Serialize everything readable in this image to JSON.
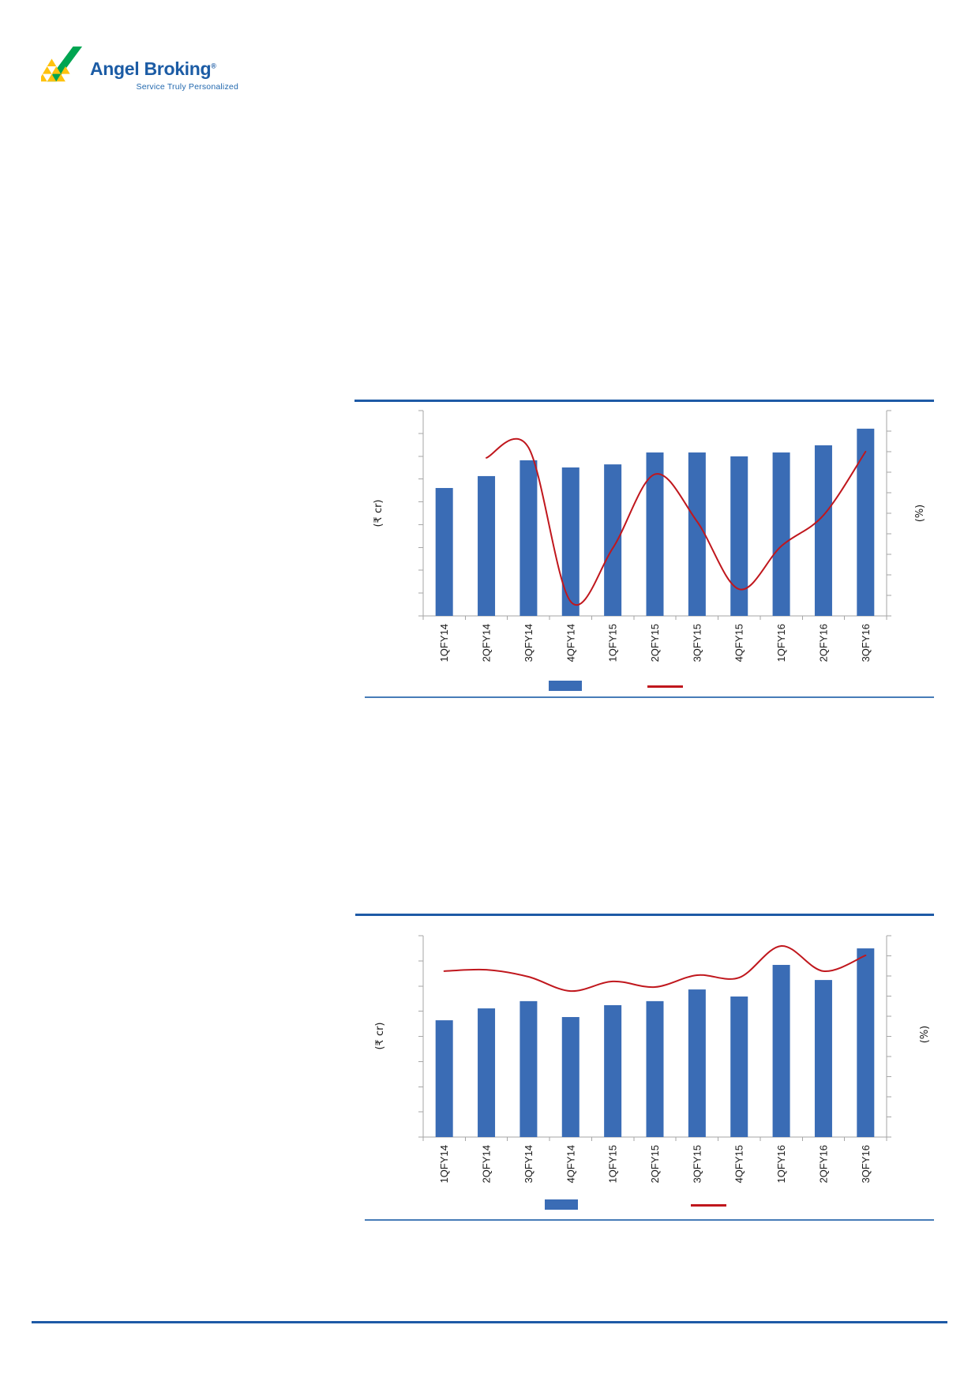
{
  "brand": {
    "name": "Angel Broking",
    "registered_mark": "®",
    "tagline": "Service Truly Personalized"
  },
  "colors": {
    "brand_blue": "#1c5ca5",
    "tagline_blue": "#2268ae",
    "logo_green": "#00a551",
    "logo_yellow": "#ffc20e",
    "bar": "#3a6cb5",
    "line": "#c0171d",
    "rule": "#1e5aa6",
    "rule_thin": "#477cb8",
    "axis": "#a6a6a6",
    "tick_label": "#1a1a1a"
  },
  "chart_data": [
    {
      "type": "bar+line",
      "categories": [
        "1QFY14",
        "2QFY14",
        "3QFY14",
        "4QFY14",
        "1QFY15",
        "2QFY15",
        "3QFY15",
        "4QFY15",
        "1QFY16",
        "2QFY16",
        "3QFY16"
      ],
      "ylabel_left": "(₹ cr)",
      "ylabel_right": "(%)",
      "axis_numbers_visible": false,
      "values_are_percent_of_plot_height": true,
      "legend_position": "bottom",
      "grid": false,
      "series": [
        {
          "id": "bars",
          "type": "bar",
          "axis": "left",
          "values_pct": [
            62.3,
            68.1,
            75.8,
            72.3,
            73.8,
            79.6,
            79.6,
            77.7,
            79.6,
            83.1,
            91.2
          ]
        },
        {
          "id": "line",
          "type": "line",
          "axis": "right",
          "values_pct": [
            null,
            77.0,
            82.0,
            7.0,
            33.0,
            69.0,
            46.0,
            13.0,
            34.0,
            49.0,
            80.0
          ]
        }
      ]
    },
    {
      "type": "bar+line",
      "categories": [
        "1QFY14",
        "2QFY14",
        "3QFY14",
        "4QFY14",
        "1QFY15",
        "2QFY15",
        "3QFY15",
        "4QFY15",
        "1QFY16",
        "2QFY16",
        "3QFY16"
      ],
      "ylabel_left": "(₹ cr)",
      "ylabel_right": "(%)",
      "axis_numbers_visible": false,
      "values_are_percent_of_plot_height": true,
      "legend_position": "bottom",
      "grid": false,
      "series": [
        {
          "id": "bars",
          "type": "bar",
          "axis": "left",
          "values_pct": [
            58.0,
            63.9,
            67.5,
            59.6,
            65.5,
            67.5,
            73.3,
            69.8,
            85.5,
            78.0,
            93.7
          ]
        },
        {
          "id": "line",
          "type": "line",
          "axis": "right",
          "values_pct": [
            82.4,
            83.1,
            79.6,
            72.5,
            77.3,
            74.5,
            80.4,
            79.2,
            94.9,
            82.4,
            90.2
          ]
        }
      ]
    }
  ]
}
